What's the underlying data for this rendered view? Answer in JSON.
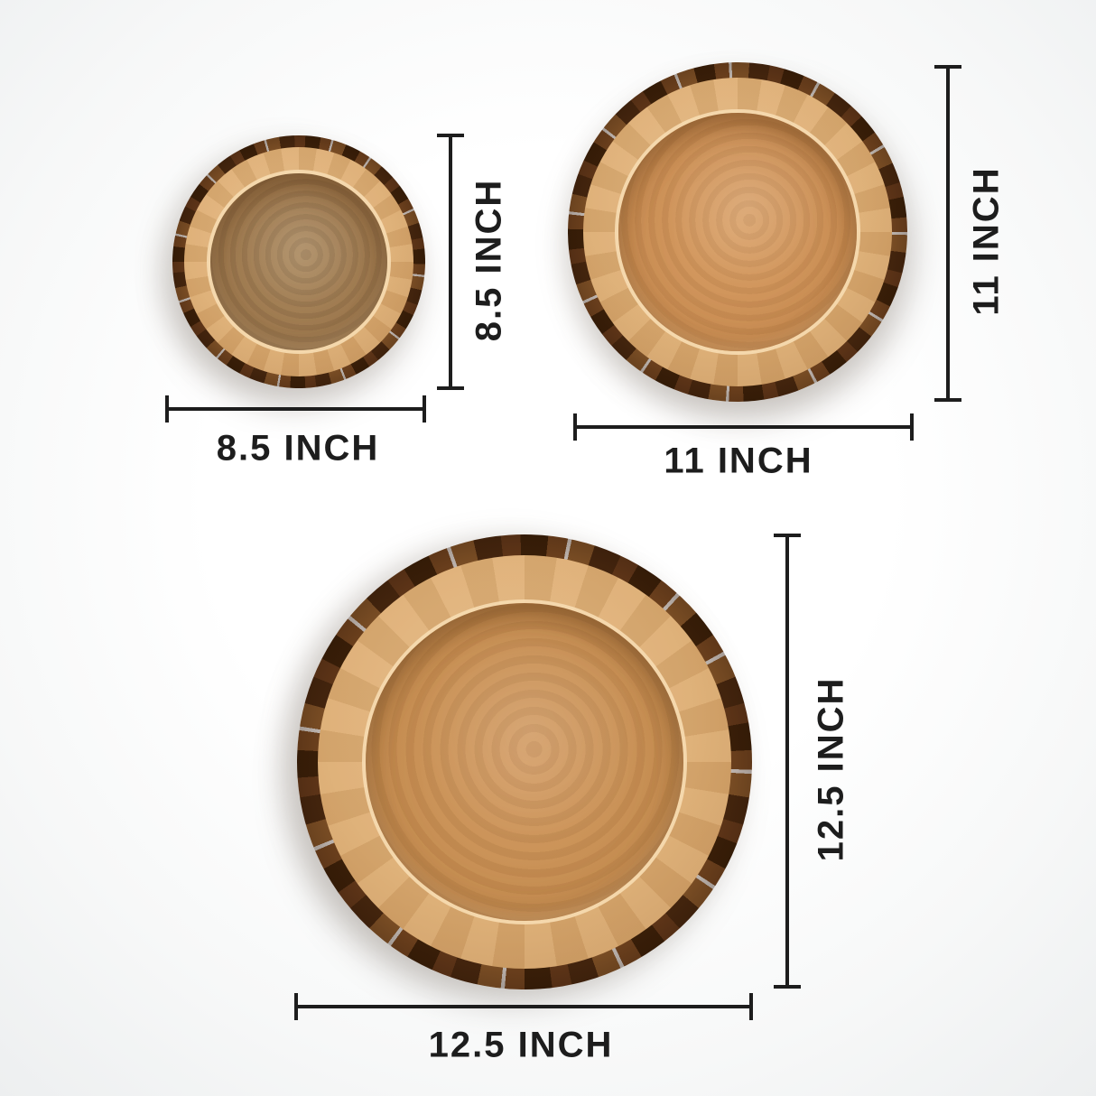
{
  "page": {
    "background_center": "#ffffff",
    "background_edge": "#edeff0"
  },
  "annotation": {
    "line_color": "#1d1d1d",
    "text_color": "#1d1d1d"
  },
  "colors": {
    "bark_dark": "#3f2209",
    "bark_light": "#8c5a2b",
    "rim_tan": "#dcac72",
    "interior_small": "#a07c52",
    "interior_medium": "#cd9157",
    "interior_large": "#c89054",
    "highlight_ring": "#f6dbb1"
  },
  "trays": [
    {
      "name": "small-tray",
      "size_inches": 8.5,
      "width_label": "8.5 INCH",
      "height_label": "8.5 INCH"
    },
    {
      "name": "medium-tray",
      "size_inches": 11,
      "width_label": "11 INCH",
      "height_label": "11 INCH"
    },
    {
      "name": "large-tray",
      "size_inches": 12.5,
      "width_label": "12.5 INCH",
      "height_label": "12.5 INCH"
    }
  ]
}
